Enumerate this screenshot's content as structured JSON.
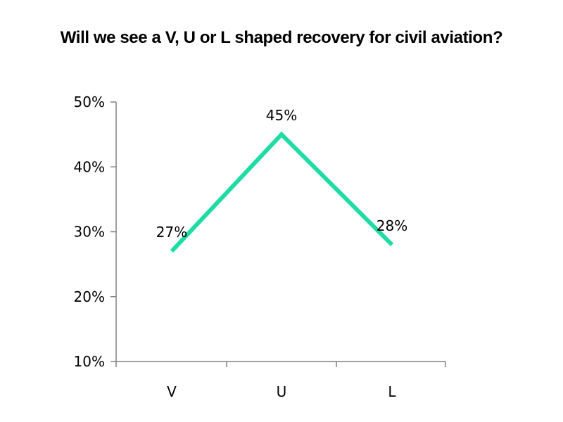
{
  "chart_data": {
    "type": "line",
    "title": "Will we see a V, U or L shaped recovery for civil aviation?",
    "xlabel": "",
    "ylabel": "",
    "categories": [
      "V",
      "U",
      "L"
    ],
    "series": [
      {
        "values": [
          27,
          45,
          28
        ],
        "data_labels": [
          "27%",
          "45%",
          "28%"
        ],
        "color": "#1fdba4"
      }
    ],
    "ylim": [
      10,
      50
    ],
    "yticks": [
      10,
      20,
      30,
      40,
      50
    ],
    "ytick_labels": [
      "10%",
      "20%",
      "30%",
      "40%",
      "50%"
    ],
    "grid": false,
    "legend": "none",
    "axis_color": "#808080"
  }
}
